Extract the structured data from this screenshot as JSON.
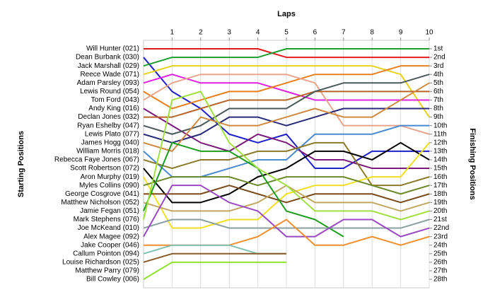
{
  "chart_data": {
    "type": "line",
    "title": "Laps",
    "y_label": "Starting Positions",
    "y2_label": "Finishing Positions",
    "x": [
      0,
      1,
      2,
      3,
      4,
      5,
      6,
      7,
      8,
      9,
      10
    ],
    "xlim": [
      0,
      10
    ],
    "xticks": [
      1,
      2,
      3,
      4,
      5,
      6,
      7,
      8,
      9,
      10
    ],
    "ylim": [
      1,
      28
    ],
    "y_inverted": true,
    "grid": true,
    "y2lim": [
      1,
      28
    ],
    "y2ticks": [
      {
        "value": 1,
        "label": "1st"
      },
      {
        "value": 2,
        "label": "2nd"
      },
      {
        "value": 3,
        "label": "3rd"
      },
      {
        "value": 4,
        "label": "4th"
      },
      {
        "value": 5,
        "label": "5th"
      },
      {
        "value": 6,
        "label": "6th"
      },
      {
        "value": 7,
        "label": "7th"
      },
      {
        "value": 8,
        "label": "8th"
      },
      {
        "value": 9,
        "label": "9th"
      },
      {
        "value": 10,
        "label": "10th"
      },
      {
        "value": 11,
        "label": "11th"
      },
      {
        "value": 12,
        "label": "12th"
      },
      {
        "value": 13,
        "label": "13th"
      },
      {
        "value": 14,
        "label": "14th"
      },
      {
        "value": 15,
        "label": "15th"
      },
      {
        "value": 16,
        "label": "16th"
      },
      {
        "value": 17,
        "label": "17th"
      },
      {
        "value": 18,
        "label": "18th"
      },
      {
        "value": 19,
        "label": "19th"
      },
      {
        "value": 20,
        "label": "20th"
      },
      {
        "value": 21,
        "label": "21st"
      },
      {
        "value": 22,
        "label": "22nd"
      },
      {
        "value": 23,
        "label": "23rd"
      },
      {
        "value": 24,
        "label": "24th"
      },
      {
        "value": 25,
        "label": "25th"
      },
      {
        "value": 26,
        "label": "26th"
      },
      {
        "value": 27,
        "label": "27th"
      },
      {
        "value": 28,
        "label": "28th"
      }
    ],
    "series": [
      {
        "name": "Will Hunter (021)",
        "color": "#e31a1c",
        "values": [
          1,
          1,
          1,
          1,
          1,
          2,
          2,
          2,
          2,
          2,
          2
        ]
      },
      {
        "name": "Dean Burbank (030)",
        "color": "#1f1fcc",
        "values": [
          2,
          6,
          8,
          11,
          12,
          11,
          15,
          15,
          13,
          13,
          13
        ]
      },
      {
        "name": "Jack Marshall (029)",
        "color": "#1e9e2e",
        "values": [
          3,
          2,
          2,
          2,
          2,
          1,
          1,
          1,
          1,
          1,
          1
        ]
      },
      {
        "name": "Reece Wade (071)",
        "color": "#e6d21a",
        "values": [
          4,
          3,
          3,
          3,
          3,
          3,
          3,
          3,
          3,
          4,
          9
        ]
      },
      {
        "name": "Adam Parsley (093)",
        "color": "#e020e0",
        "values": [
          5,
          4,
          5,
          5,
          5,
          6,
          7,
          7,
          7,
          7,
          7
        ]
      },
      {
        "name": "Lewis Round (054)",
        "color": "#e8801e",
        "values": [
          6,
          8,
          7,
          6,
          6,
          5,
          4,
          4,
          4,
          3,
          3
        ]
      },
      {
        "name": "Tom Ford (043)",
        "color": "#e8a58c",
        "values": [
          7,
          5,
          4,
          4,
          4,
          4,
          5,
          10,
          10,
          10,
          11
        ]
      },
      {
        "name": "Andy King (016)",
        "color": "#7a1a7a",
        "values": [
          8,
          10,
          12,
          13,
          11,
          12,
          14,
          14,
          15,
          15,
          15
        ]
      },
      {
        "name": "Declan Jones (032)",
        "color": "#b8652a",
        "values": [
          9,
          9,
          8,
          7,
          7,
          7,
          6,
          6,
          6,
          6,
          6
        ]
      },
      {
        "name": "Ryan Eshelby (047)",
        "color": "#4a5a5a",
        "values": [
          10,
          11,
          10,
          8,
          8,
          8,
          6,
          5,
          5,
          5,
          4
        ]
      },
      {
        "name": "Lewis Plato (077)",
        "color": "#2a2a7a",
        "values": [
          11,
          12,
          11,
          9,
          9,
          10,
          9,
          8,
          8,
          8,
          8
        ]
      },
      {
        "name": "James Hogg (040)",
        "color": "#d08a40",
        "values": [
          12,
          13,
          9,
          10,
          10,
          9,
          8,
          9,
          9,
          7,
          5
        ]
      },
      {
        "name": "William Morris (018)",
        "color": "#4a8ad0",
        "values": [
          13,
          16,
          16,
          15,
          14,
          14,
          11,
          11,
          11,
          10,
          10
        ]
      },
      {
        "name": "Rebecca Faye Jones (067)",
        "color": "#8a7a2a",
        "values": [
          14,
          15,
          14,
          14,
          13,
          13,
          12,
          12,
          17,
          17,
          16
        ]
      },
      {
        "name": "Scott Robertson (072)",
        "color": "#000000",
        "values": [
          15,
          19,
          19,
          18,
          16,
          15,
          13,
          13,
          14,
          12,
          14
        ]
      },
      {
        "name": "Aron Murphy (019)",
        "color": "#f0e020",
        "values": [
          16,
          22,
          22,
          21,
          21,
          18,
          17,
          17,
          16,
          16,
          12
        ]
      },
      {
        "name": "Myles Collins (090)",
        "color": "#6a8a2a",
        "values": [
          17,
          16,
          16,
          16,
          17,
          16,
          16,
          16,
          17,
          18,
          17
        ]
      },
      {
        "name": "George Cosgrove (041)",
        "color": "#7a4a1a",
        "values": [
          18,
          18,
          18,
          17,
          18,
          19,
          18,
          18,
          18,
          19,
          18
        ]
      },
      {
        "name": "Matthew Nicholson (052)",
        "color": "#c0a860",
        "values": [
          19,
          20,
          20,
          20,
          19,
          17,
          19,
          19,
          19,
          20,
          19
        ]
      },
      {
        "name": "Jamie Fegan (051)",
        "color": "#1e9e1e",
        "values": [
          20,
          12,
          13,
          13,
          15,
          20,
          21,
          23,
          null,
          null,
          null
        ]
      },
      {
        "name": "Mark Stephens (076)",
        "color": "#a0e040",
        "values": [
          21,
          7,
          6,
          12,
          15,
          17,
          20,
          20,
          20,
          21,
          20
        ]
      },
      {
        "name": "Joe McKeand (010)",
        "color": "#8aa0a0",
        "values": [
          22,
          21,
          21,
          22,
          22,
          22,
          22,
          22,
          22,
          22,
          21
        ]
      },
      {
        "name": "Alex Magee (092)",
        "color": "#9a4ac0",
        "values": [
          23,
          17,
          17,
          19,
          20,
          23,
          23,
          21,
          21,
          23,
          22
        ]
      },
      {
        "name": "Jake Cooper (046)",
        "color": "#f09030",
        "values": [
          24,
          24,
          24,
          24,
          23,
          21,
          24,
          24,
          23,
          24,
          23
        ]
      },
      {
        "name": "Callum Pointon (094)",
        "color": "#80c0b0",
        "values": [
          25,
          24,
          24,
          24,
          25,
          25,
          null,
          null,
          null,
          null,
          null
        ]
      },
      {
        "name": "Louise Richardson (025)",
        "color": "#8a5a2a",
        "values": [
          26,
          25,
          25,
          25,
          25,
          25,
          null,
          null,
          null,
          null,
          null
        ]
      },
      {
        "name": "Matthew Parry (079)",
        "color": "#a0a0a0",
        "values": [
          27,
          null,
          null,
          null,
          null,
          null,
          null,
          null,
          null,
          null,
          null
        ]
      },
      {
        "name": "Bill Cowley (006)",
        "color": "#90e030",
        "values": [
          28,
          26,
          26,
          26,
          26,
          26,
          null,
          null,
          null,
          null,
          null
        ]
      }
    ]
  }
}
